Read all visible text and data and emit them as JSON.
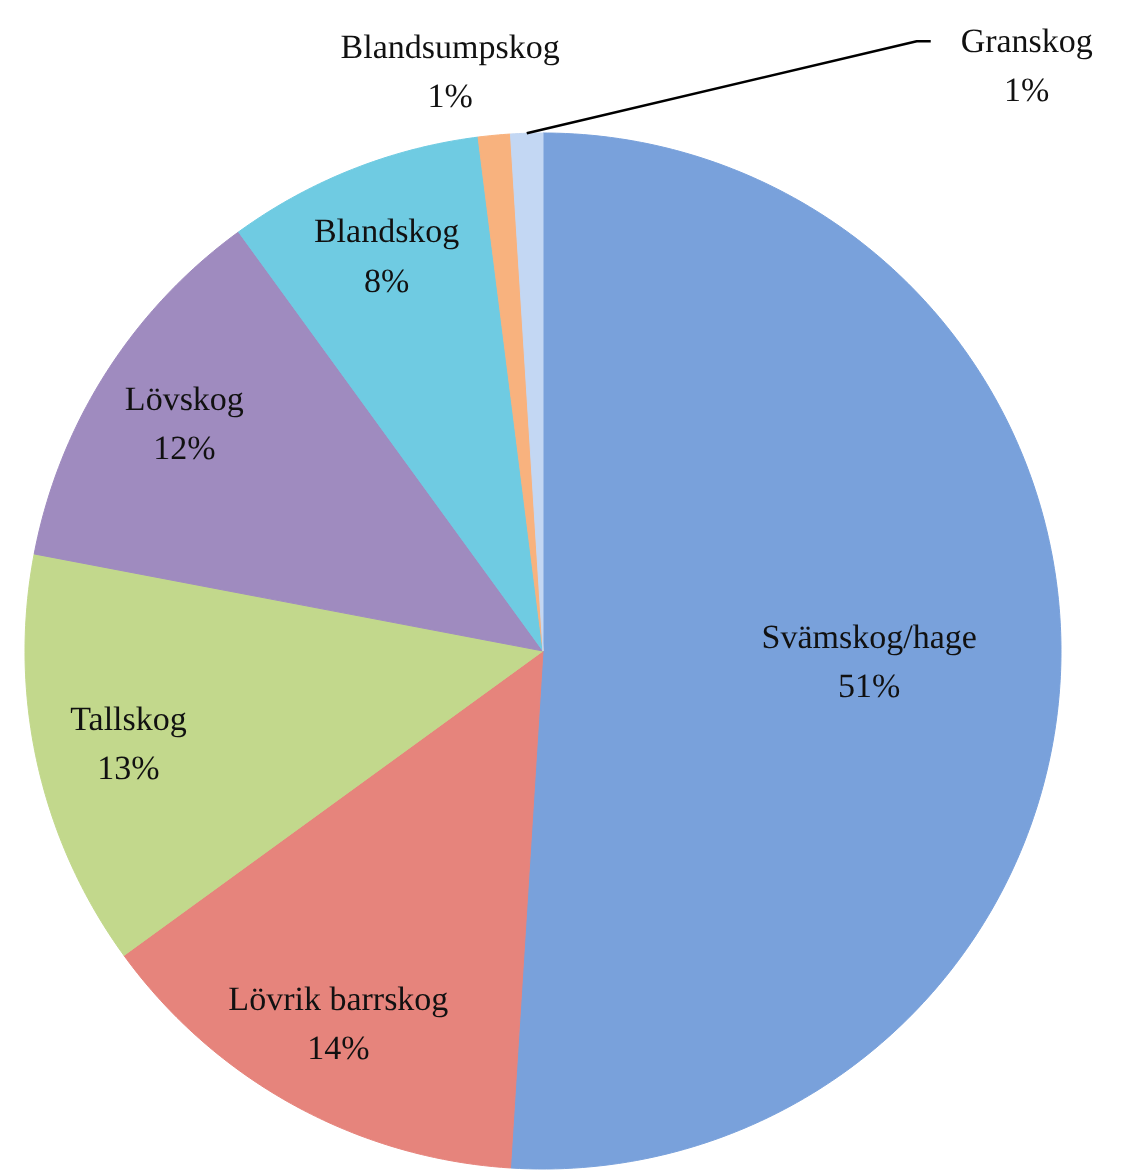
{
  "chart_data": {
    "type": "pie",
    "categories": [
      "Svämskog/hage",
      "Lövrik barrskog",
      "Tallskog",
      "Lövskog",
      "Blandskog",
      "Blandsumpskog",
      "Granskog"
    ],
    "values": [
      51,
      14,
      13,
      12,
      8,
      1,
      1
    ],
    "colors": [
      "#79a1db",
      "#e6847c",
      "#c2d88c",
      "#9f8bbf",
      "#6fcbe2",
      "#f8b27e",
      "#c3d7f3"
    ],
    "value_labels": [
      "51%",
      "14%",
      "13%",
      "12%",
      "8%",
      "1%",
      "1%"
    ]
  }
}
